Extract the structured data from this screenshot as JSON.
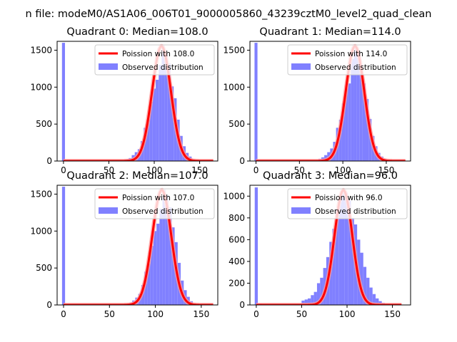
{
  "figure": {
    "suptitle": "n file: modeM0/AS1A06_006T01_9000005860_43239cztM0_level2_quad_clean"
  },
  "colors": {
    "hist": "#8080ff",
    "fit": "#ff0000",
    "fit_halo": "#ff9c9c",
    "axes": "#000000",
    "background": "#ffffff"
  },
  "chart_data": [
    {
      "type": "bar",
      "title": "Quadrant 0: Median=108.0",
      "xlim": [
        -7,
        170
      ],
      "ylim": [
        0,
        1620
      ],
      "xticks": [
        0,
        50,
        100,
        150
      ],
      "yticks": [
        0,
        500,
        1000,
        1500
      ],
      "legend_position": "upper-right",
      "legend": [
        "Poission with 108.0",
        "Observed distribution"
      ],
      "median": 108.0,
      "peak": 1555,
      "sigma": 10.4,
      "fit_range": [
        0,
        165
      ],
      "hist": {
        "bin_width": 3.3,
        "bins": [
          [
            -1.65,
            1600
          ],
          [
            62,
            8
          ],
          [
            65.3,
            15
          ],
          [
            68.6,
            25
          ],
          [
            71.9,
            40
          ],
          [
            75.2,
            80
          ],
          [
            78.5,
            120
          ],
          [
            81.8,
            160
          ],
          [
            85.1,
            270
          ],
          [
            88.4,
            450
          ],
          [
            91.7,
            560
          ],
          [
            95,
            800
          ],
          [
            98.3,
            980
          ],
          [
            101.6,
            1100
          ],
          [
            104.9,
            1300
          ],
          [
            108.2,
            1560
          ],
          [
            111.5,
            1450
          ],
          [
            114.8,
            1320
          ],
          [
            118.1,
            1010
          ],
          [
            121.4,
            850
          ],
          [
            124.7,
            560
          ],
          [
            128,
            340
          ],
          [
            131.3,
            200
          ],
          [
            134.6,
            110
          ],
          [
            137.9,
            60
          ],
          [
            141.2,
            25
          ],
          [
            144.5,
            10
          ]
        ]
      }
    },
    {
      "type": "bar",
      "title": "Quadrant 1: Median=114.0",
      "xlim": [
        -7,
        178
      ],
      "ylim": [
        0,
        1620
      ],
      "xticks": [
        0,
        50,
        100,
        150
      ],
      "yticks": [
        0,
        500,
        1000,
        1500
      ],
      "legend_position": "upper-right",
      "legend": [
        "Poission with 114.0",
        "Observed distribution"
      ],
      "median": 114.0,
      "peak": 1555,
      "sigma": 10.7,
      "fit_range": [
        0,
        172
      ],
      "hist": {
        "bin_width": 3.4,
        "bins": [
          [
            -1.7,
            1600
          ],
          [
            65,
            8
          ],
          [
            68.4,
            15
          ],
          [
            71.8,
            30
          ],
          [
            75.2,
            50
          ],
          [
            78.6,
            80
          ],
          [
            82,
            120
          ],
          [
            85.4,
            170
          ],
          [
            88.8,
            260
          ],
          [
            92.2,
            450
          ],
          [
            95.6,
            560
          ],
          [
            99,
            780
          ],
          [
            102.4,
            980
          ],
          [
            105.8,
            1050
          ],
          [
            109.2,
            1380
          ],
          [
            112.6,
            1560
          ],
          [
            116,
            1450
          ],
          [
            119.4,
            1310
          ],
          [
            122.8,
            1050
          ],
          [
            126.2,
            840
          ],
          [
            129.6,
            570
          ],
          [
            133,
            340
          ],
          [
            136.4,
            200
          ],
          [
            139.8,
            110
          ],
          [
            143.2,
            60
          ],
          [
            146.6,
            30
          ],
          [
            150,
            10
          ]
        ]
      }
    },
    {
      "type": "bar",
      "title": "Quadrant 2: Median=107.0",
      "xlim": [
        -7,
        168
      ],
      "ylim": [
        0,
        1620
      ],
      "xticks": [
        0,
        50,
        100,
        150
      ],
      "yticks": [
        0,
        500,
        1000,
        1500
      ],
      "legend_position": "upper-right",
      "legend": [
        "Poission with 107.0",
        "Observed distribution"
      ],
      "median": 107.0,
      "peak": 1555,
      "sigma": 10.3,
      "fit_range": [
        0,
        163
      ],
      "hist": {
        "bin_width": 3.3,
        "bins": [
          [
            -1.65,
            1600
          ],
          [
            64.9,
            8
          ],
          [
            68.2,
            12
          ],
          [
            71.5,
            30
          ],
          [
            74.8,
            60
          ],
          [
            78.1,
            100
          ],
          [
            81.4,
            150
          ],
          [
            84.7,
            270
          ],
          [
            88,
            450
          ],
          [
            91.3,
            560
          ],
          [
            94.6,
            800
          ],
          [
            97.9,
            1000
          ],
          [
            101.2,
            1100
          ],
          [
            104.5,
            1300
          ],
          [
            107.8,
            1560
          ],
          [
            111.1,
            1480
          ],
          [
            114.4,
            1320
          ],
          [
            117.7,
            1050
          ],
          [
            121,
            850
          ],
          [
            124.3,
            570
          ],
          [
            127.6,
            330
          ],
          [
            130.9,
            200
          ],
          [
            134.2,
            110
          ],
          [
            137.5,
            50
          ],
          [
            140.8,
            20
          ],
          [
            144.1,
            8
          ]
        ]
      }
    },
    {
      "type": "bar",
      "title": "Quadrant 3: Median=96.0",
      "xlim": [
        -7,
        170
      ],
      "ylim": [
        0,
        1100
      ],
      "xticks": [
        0,
        50,
        100,
        150
      ],
      "yticks": [
        0,
        200,
        400,
        600,
        800,
        1000
      ],
      "legend_position": "upper-right",
      "legend": [
        "Poission with 96.0",
        "Observed distribution"
      ],
      "median": 96.0,
      "peak": 1055,
      "sigma": 9.8,
      "fit_range": [
        0,
        160
      ],
      "hist": {
        "bin_width": 3.4,
        "bins": [
          [
            -1.7,
            1080
          ],
          [
            3,
            12
          ],
          [
            49.9,
            40
          ],
          [
            53.3,
            50
          ],
          [
            56.7,
            60
          ],
          [
            60.1,
            90
          ],
          [
            63.5,
            120
          ],
          [
            66.9,
            200
          ],
          [
            70.3,
            250
          ],
          [
            73.7,
            340
          ],
          [
            77.1,
            440
          ],
          [
            80.5,
            580
          ],
          [
            83.9,
            700
          ],
          [
            87.3,
            880
          ],
          [
            90.7,
            1000
          ],
          [
            94.1,
            1060
          ],
          [
            97.5,
            1030
          ],
          [
            100.9,
            960
          ],
          [
            104.3,
            800
          ],
          [
            107.7,
            740
          ],
          [
            111.1,
            600
          ],
          [
            114.5,
            480
          ],
          [
            117.9,
            350
          ],
          [
            121.3,
            250
          ],
          [
            124.7,
            160
          ],
          [
            128.1,
            100
          ],
          [
            131.5,
            60
          ],
          [
            134.9,
            35
          ],
          [
            138.3,
            20
          ],
          [
            141.7,
            10
          ],
          [
            145.1,
            5
          ]
        ]
      }
    }
  ]
}
